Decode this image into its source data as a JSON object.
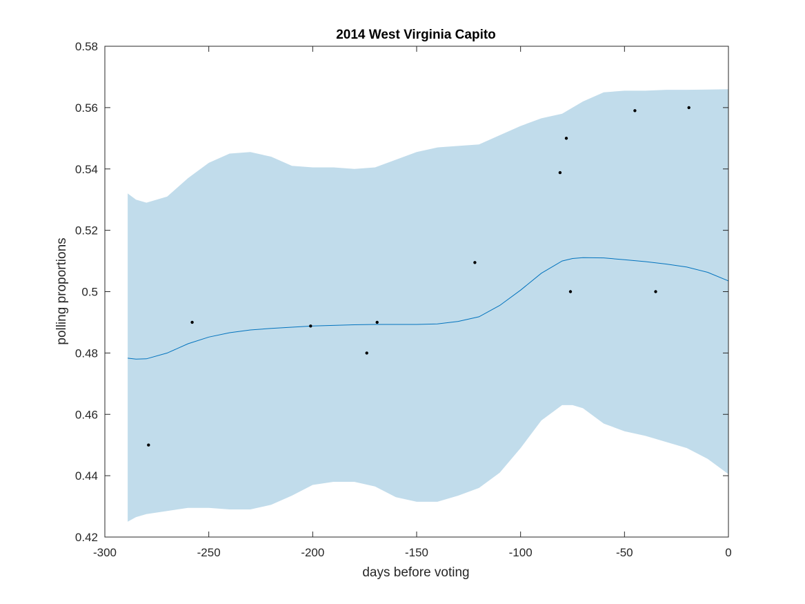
{
  "chart_data": {
    "type": "line",
    "title": "2014 West Virginia Capito",
    "xlabel": "days before voting",
    "ylabel": "polling proportions",
    "xlim": [
      -300,
      0
    ],
    "ylim": [
      0.42,
      0.58
    ],
    "xticks": [
      -300,
      -250,
      -200,
      -150,
      -100,
      -50,
      0
    ],
    "xtick_labels": [
      "-300",
      "-250",
      "-200",
      "-150",
      "-100",
      "-50",
      "0"
    ],
    "yticks": [
      0.42,
      0.44,
      0.46,
      0.48,
      0.5,
      0.52,
      0.54,
      0.56,
      0.58
    ],
    "ytick_labels": [
      "0.42",
      "0.44",
      "0.46",
      "0.48",
      "0.5",
      "0.52",
      "0.54",
      "0.56",
      "0.58"
    ],
    "grid": false,
    "colors": {
      "band": "#c1dceb",
      "line": "#0072bd",
      "points": "#000000",
      "axes": "#262626"
    },
    "band": {
      "x": [
        -289,
        -285,
        -280,
        -270,
        -260,
        -250,
        -240,
        -230,
        -220,
        -210,
        -200,
        -190,
        -180,
        -170,
        -160,
        -150,
        -140,
        -130,
        -120,
        -110,
        -100,
        -90,
        -80,
        -75,
        -70,
        -60,
        -50,
        -40,
        -30,
        -20,
        -10,
        0
      ],
      "upper": [
        0.532,
        0.53,
        0.529,
        0.531,
        0.537,
        0.542,
        0.545,
        0.5455,
        0.544,
        0.541,
        0.5405,
        0.5405,
        0.54,
        0.5405,
        0.543,
        0.5455,
        0.547,
        0.5475,
        0.548,
        0.551,
        0.554,
        0.5565,
        0.558,
        0.56,
        0.562,
        0.565,
        0.5655,
        0.5655,
        0.5658,
        0.5658,
        0.5659,
        0.566
      ],
      "lower": [
        0.425,
        0.4265,
        0.4275,
        0.4285,
        0.4295,
        0.4295,
        0.429,
        0.429,
        0.4305,
        0.4335,
        0.437,
        0.438,
        0.438,
        0.4365,
        0.433,
        0.4315,
        0.4315,
        0.4335,
        0.436,
        0.441,
        0.449,
        0.458,
        0.463,
        0.463,
        0.462,
        0.457,
        0.4545,
        0.453,
        0.451,
        0.449,
        0.4455,
        0.4405
      ]
    },
    "mean": {
      "x": [
        -289,
        -285,
        -280,
        -270,
        -260,
        -250,
        -240,
        -230,
        -220,
        -210,
        -200,
        -190,
        -180,
        -170,
        -160,
        -150,
        -140,
        -130,
        -120,
        -110,
        -100,
        -90,
        -80,
        -75,
        -70,
        -60,
        -50,
        -40,
        -30,
        -20,
        -10,
        0
      ],
      "y": [
        0.4783,
        0.478,
        0.4781,
        0.48,
        0.483,
        0.4852,
        0.4866,
        0.4875,
        0.488,
        0.4884,
        0.4888,
        0.489,
        0.4892,
        0.4893,
        0.4893,
        0.4893,
        0.4895,
        0.4903,
        0.4918,
        0.4955,
        0.5005,
        0.506,
        0.51,
        0.5108,
        0.5111,
        0.511,
        0.5104,
        0.5098,
        0.509,
        0.508,
        0.5063,
        0.5035
      ]
    },
    "points": [
      {
        "x": -279,
        "y": 0.45
      },
      {
        "x": -258,
        "y": 0.49
      },
      {
        "x": -201,
        "y": 0.4888
      },
      {
        "x": -174,
        "y": 0.48
      },
      {
        "x": -169,
        "y": 0.49
      },
      {
        "x": -122,
        "y": 0.5095
      },
      {
        "x": -81,
        "y": 0.5388
      },
      {
        "x": -78,
        "y": 0.55
      },
      {
        "x": -76,
        "y": 0.5
      },
      {
        "x": -45,
        "y": 0.559
      },
      {
        "x": -35,
        "y": 0.5
      },
      {
        "x": -19,
        "y": 0.56
      }
    ]
  }
}
